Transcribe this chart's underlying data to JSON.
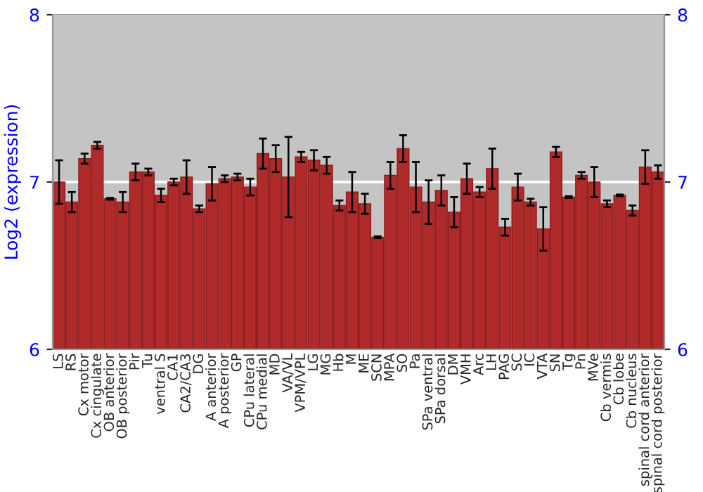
{
  "chart_data": {
    "type": "bar",
    "ylabel": "Log2 (expression)",
    "categories": [
      "LS",
      "RS",
      "Cx motor",
      "Cx cingulate",
      "OB anterior",
      "OB posterior",
      "Pir",
      "Tu",
      "ventral S",
      "CA1",
      "CA2/CA3",
      "DG",
      "A anterior",
      "A posterior",
      "GP",
      "CPu lateral",
      "CPu medial",
      "MD",
      "VA/VL",
      "VPM/VPL",
      "LG",
      "MG",
      "Hb",
      "M",
      "ME",
      "SCN",
      "MPA",
      "SO",
      "Pa",
      "SPa ventral",
      "SPa dorsal",
      "DM",
      "VMH",
      "Arc",
      "LH",
      "PAG",
      "SC",
      "IC",
      "VTA",
      "SN",
      "Tg",
      "Pn",
      "MVe",
      "Cb vermis",
      "Cb lobe",
      "Cb nucleus",
      "spinal cord anterior",
      "spinal cord posterior"
    ],
    "values": [
      7.0,
      6.88,
      7.14,
      7.22,
      6.9,
      6.88,
      7.06,
      7.06,
      6.92,
      7.0,
      7.03,
      6.84,
      6.99,
      7.02,
      7.03,
      6.97,
      7.17,
      7.14,
      7.03,
      7.15,
      7.13,
      7.1,
      6.86,
      6.94,
      6.87,
      6.67,
      7.04,
      7.2,
      6.97,
      6.88,
      6.95,
      6.82,
      7.02,
      6.94,
      7.08,
      6.73,
      6.97,
      6.88,
      6.72,
      7.18,
      6.91,
      7.04,
      7.0,
      6.87,
      6.92,
      6.83,
      7.09,
      7.06
    ],
    "errors": [
      0.13,
      0.06,
      0.03,
      0.02,
      0.005,
      0.06,
      0.05,
      0.02,
      0.04,
      0.02,
      0.1,
      0.02,
      0.1,
      0.02,
      0.02,
      0.05,
      0.09,
      0.08,
      0.24,
      0.03,
      0.06,
      0.05,
      0.03,
      0.12,
      0.06,
      0.005,
      0.08,
      0.08,
      0.15,
      0.13,
      0.09,
      0.09,
      0.09,
      0.03,
      0.12,
      0.05,
      0.08,
      0.02,
      0.13,
      0.03,
      0.005,
      0.02,
      0.09,
      0.02,
      0.005,
      0.03,
      0.1,
      0.04
    ],
    "color": "#b02a2a",
    "ylim": [
      6,
      8
    ],
    "yticks": [
      6,
      7,
      8
    ],
    "y2lim": [
      6,
      8
    ],
    "y2ticks": [
      6,
      7,
      8
    ],
    "grid": "y"
  }
}
